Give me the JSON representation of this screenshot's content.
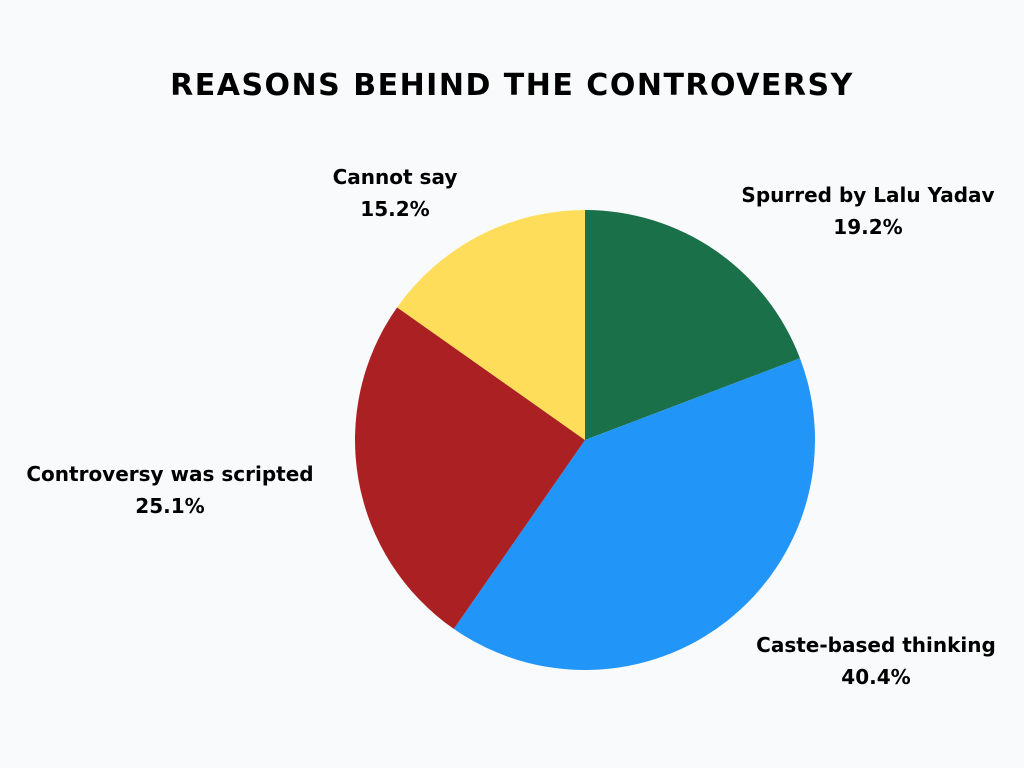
{
  "chart_data": {
    "type": "pie",
    "title": "REASONS BEHIND THE CONTROVERSY",
    "slices": [
      {
        "label": "Spurred by Lalu Yadav",
        "value": 19.2,
        "display": "19.2%",
        "color": "#1a7048"
      },
      {
        "label": "Caste-based thinking",
        "value": 40.4,
        "display": "40.4%",
        "color": "#2196f8"
      },
      {
        "label": "Controversy was scripted",
        "value": 25.1,
        "display": "25.1%",
        "color": "#ab2022"
      },
      {
        "label": "Cannot say",
        "value": 15.2,
        "display": "15.2%",
        "color": "#fedd5b"
      }
    ],
    "start_angle": "top",
    "direction": "clockwise",
    "legend": "none"
  }
}
